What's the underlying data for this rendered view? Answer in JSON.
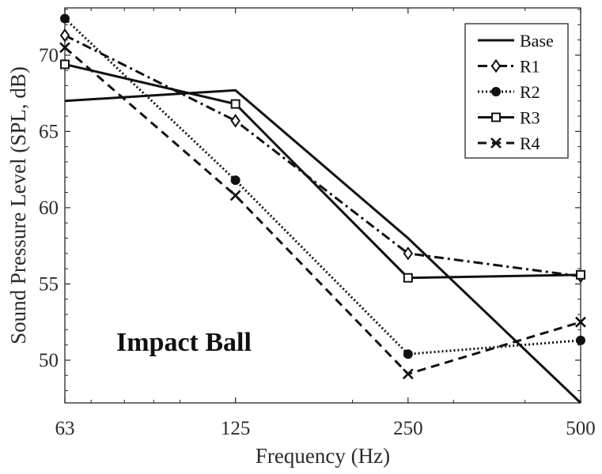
{
  "chart_data": {
    "type": "line",
    "title": "",
    "xlabel": "Frequency (Hz)",
    "ylabel": "Sound Pressure Level (SPL, dB)",
    "x_scale": "log",
    "categories": [
      "63",
      "125",
      "250",
      "500"
    ],
    "x": [
      63,
      125,
      250,
      500
    ],
    "xlim": [
      63,
      500
    ],
    "ylim": [
      47.2,
      73.1
    ],
    "yticks": [
      50,
      55,
      60,
      65,
      70
    ],
    "grid": false,
    "legend_position": "top-right",
    "annotation": "Impact Ball",
    "series": [
      {
        "name": "Base",
        "values": [
          67.0,
          67.7,
          58.0,
          47.2
        ],
        "line_style": "solid",
        "marker": "none"
      },
      {
        "name": "R1",
        "values": [
          71.3,
          65.7,
          57.0,
          55.5
        ],
        "line_style": "dashdot",
        "marker": "diamond"
      },
      {
        "name": "R2",
        "values": [
          72.4,
          61.8,
          50.4,
          51.3
        ],
        "line_style": "dotted",
        "marker": "circle"
      },
      {
        "name": "R3",
        "values": [
          69.4,
          66.8,
          55.4,
          55.6
        ],
        "line_style": "solid",
        "marker": "square"
      },
      {
        "name": "R4",
        "values": [
          70.5,
          60.8,
          49.1,
          52.5
        ],
        "line_style": "dashed",
        "marker": "x"
      }
    ]
  }
}
